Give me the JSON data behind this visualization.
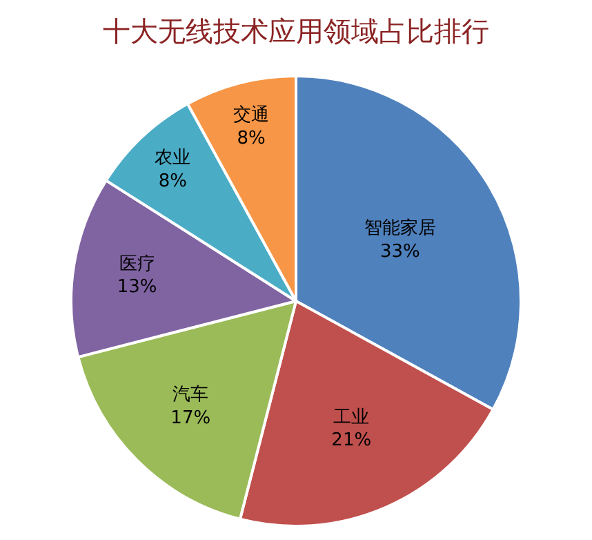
{
  "chart_data": {
    "type": "pie",
    "title": "十大无线技术应用领域占比排行",
    "categories": [
      "智能家居",
      "工业",
      "汽车",
      "医疗",
      "农业",
      "交通"
    ],
    "values": [
      33,
      21,
      17,
      13,
      8,
      8
    ],
    "value_labels": [
      "33%",
      "21%",
      "17%",
      "13%",
      "8%",
      "8%"
    ],
    "colors": [
      "#4f81bd",
      "#c0504d",
      "#9bbb59",
      "#8064a2",
      "#4bacc6",
      "#f79646"
    ],
    "legend": false
  }
}
